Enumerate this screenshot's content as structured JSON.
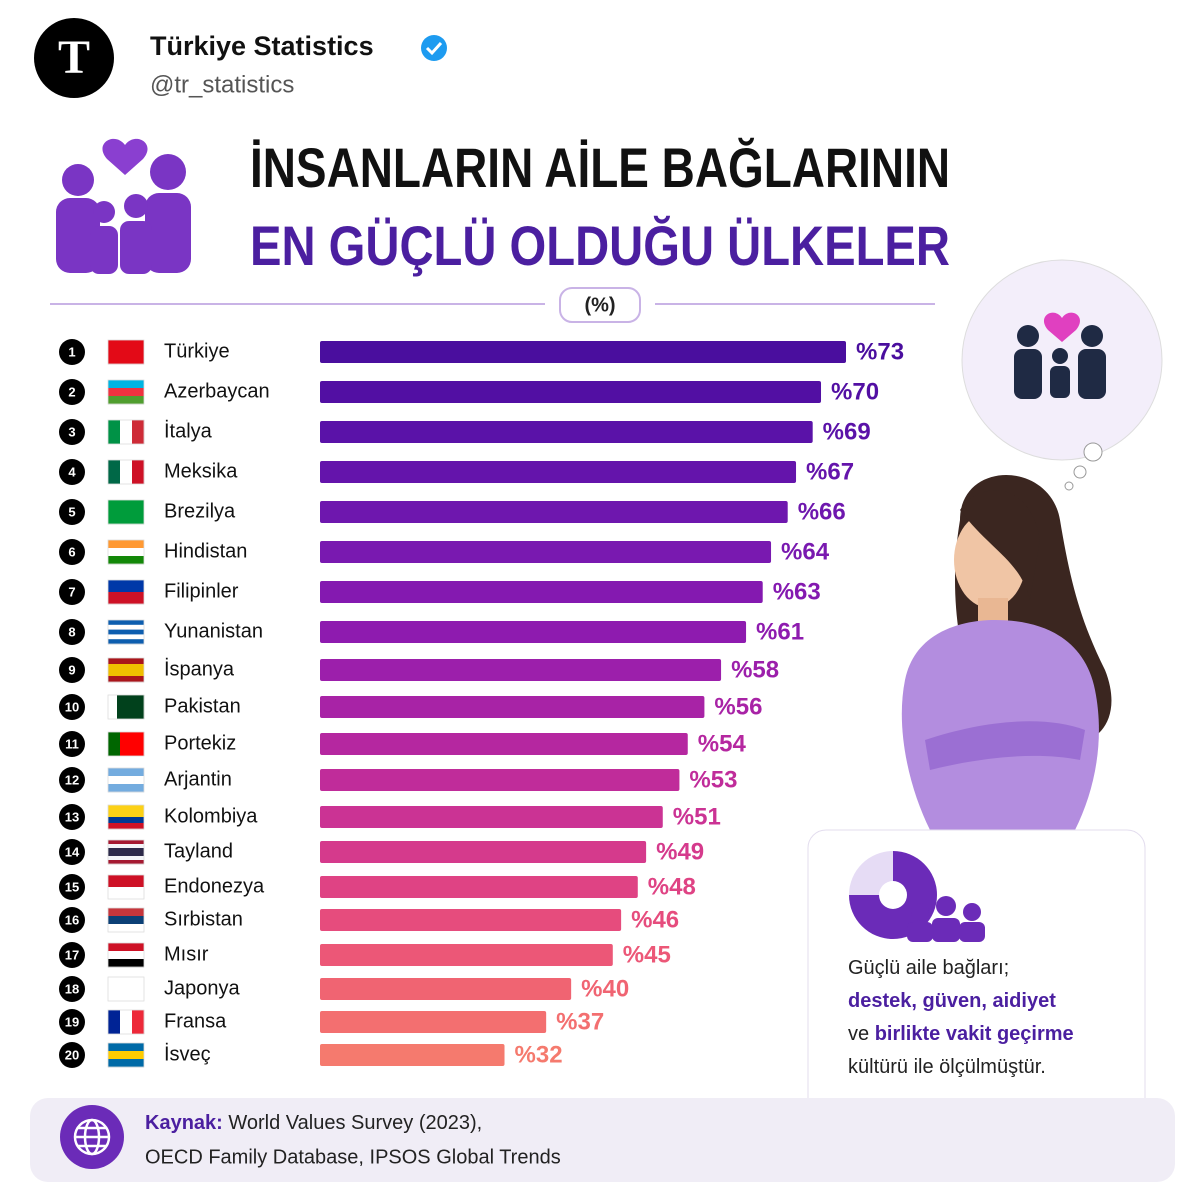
{
  "header": {
    "avatar_letter": "T",
    "name": "Türkiye Statistics",
    "handle": "@tr_statistics"
  },
  "chart_data": {
    "type": "hbar",
    "title": "İNSANLARIN AİLE BAĞLARININ",
    "subtitle": "EN GÜÇLÜ OLDUĞU ÜLKELER",
    "unit": "(%)",
    "ranks": [
      1,
      2,
      3,
      4,
      5,
      6,
      7,
      8,
      9,
      10,
      11,
      12,
      13,
      14,
      15,
      16,
      17,
      18,
      19,
      20
    ],
    "categories": [
      "Türkiye",
      "Azerbaycan",
      "İtalya",
      "Meksika",
      "Brezilya",
      "Hindistan",
      "Filipinler",
      "Yunanistan",
      "İspanya",
      "Pakistan",
      "Portekiz",
      "Arjantin",
      "Kolombiya",
      "Tayland",
      "Endonezya",
      "Sırbistan",
      "Mısır",
      "Japonya",
      "Fransa",
      "İsveç"
    ],
    "values": [
      73,
      70,
      69,
      67,
      66,
      64,
      63,
      61,
      58,
      56,
      54,
      53,
      51,
      49,
      48,
      46,
      45,
      40,
      37,
      32
    ],
    "value_labels": [
      "%73",
      "%70",
      "%69",
      "%67",
      "%66",
      "%64",
      "%63",
      "%61",
      "%58",
      "%56",
      "%54",
      "%53",
      "%51",
      "%49",
      "%48",
      "%46",
      "%45",
      "%40",
      "%37",
      "%32"
    ],
    "colors": [
      "#4a0e9e",
      "#520fa3",
      "#5a12a8",
      "#6414ab",
      "#6e17ae",
      "#7919b0",
      "#8419b0",
      "#8e1baf",
      "#9c1fab",
      "#a823a6",
      "#b527a0",
      "#c02c9a",
      "#cb3394",
      "#d53a8c",
      "#df4384",
      "#e64c7d",
      "#ec5777",
      "#f06472",
      "#f36f70",
      "#f57a6e"
    ]
  },
  "note": {
    "parts": [
      "Güçlü aile bağları;",
      "destek, güven, aidiyet",
      "ve",
      "birlikte vakit geçirme",
      "kültürü ile ölçülmüştür."
    ]
  },
  "source": {
    "label": "Kaynak:",
    "line1": "World Values Survey (2023),",
    "line2": "OECD Family Database, IPSOS Global Trends"
  }
}
